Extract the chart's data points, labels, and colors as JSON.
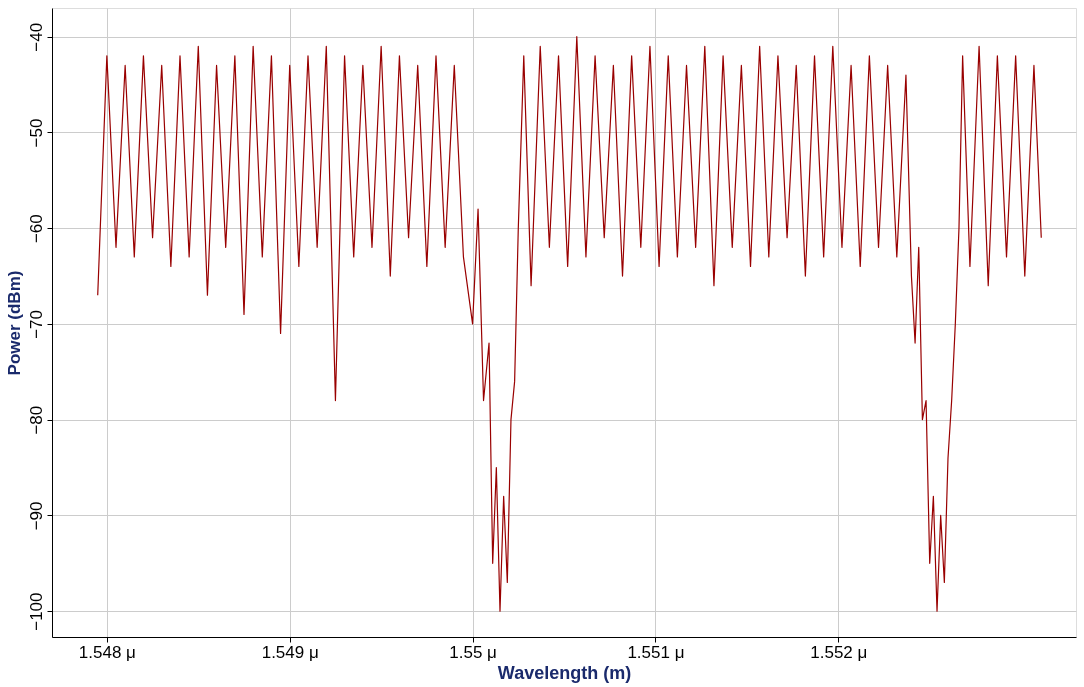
{
  "chart_data": {
    "type": "line",
    "xlabel": "Wavelength (m)",
    "ylabel": "Power (dBm)",
    "xlim": [
      1.5477,
      1.5533
    ],
    "xticks": [
      {
        "value": 1.548,
        "label": "1.548 μ"
      },
      {
        "value": 1.549,
        "label": "1.549 μ"
      },
      {
        "value": 1.55,
        "label": "1.55 μ"
      },
      {
        "value": 1.551,
        "label": "1.551 μ"
      },
      {
        "value": 1.552,
        "label": "1.552 μ"
      }
    ],
    "ylim": [
      -102.7,
      -37
    ],
    "yticks": [
      -40,
      -50,
      -60,
      -70,
      -80,
      -90,
      -100
    ],
    "grid": true,
    "line_style": "solid",
    "series": [
      {
        "color": "#990000",
        "x": [
          1.54795,
          1.548,
          1.54805,
          1.5481,
          1.54815,
          1.5482,
          1.54825,
          1.5483,
          1.54835,
          1.5484,
          1.54845,
          1.5485,
          1.54855,
          1.5486,
          1.54865,
          1.5487,
          1.54875,
          1.5488,
          1.54885,
          1.5489,
          1.54895,
          1.549,
          1.54905,
          1.5491,
          1.54915,
          1.5492,
          1.54925,
          1.5493,
          1.54935,
          1.5494,
          1.54945,
          1.5495,
          1.54955,
          1.5496,
          1.54965,
          1.5497,
          1.54975,
          1.5498,
          1.54985,
          1.5499,
          1.54995,
          1.55,
          1.55003,
          1.55006,
          1.55009,
          1.55011,
          1.55013,
          1.55015,
          1.55017,
          1.55019,
          1.55021,
          1.55023,
          1.55025,
          1.55028,
          1.55032,
          1.55037,
          1.55042,
          1.55047,
          1.55052,
          1.55057,
          1.55062,
          1.55067,
          1.55072,
          1.55077,
          1.55082,
          1.55087,
          1.55092,
          1.55097,
          1.55102,
          1.55107,
          1.55112,
          1.55117,
          1.55122,
          1.55127,
          1.55132,
          1.55137,
          1.55142,
          1.55147,
          1.55152,
          1.55157,
          1.55162,
          1.55167,
          1.55172,
          1.55177,
          1.55182,
          1.55187,
          1.55192,
          1.55197,
          1.55202,
          1.55207,
          1.55212,
          1.55217,
          1.55222,
          1.55227,
          1.55232,
          1.55237,
          1.5524,
          1.55242,
          1.55244,
          1.55246,
          1.55248,
          1.5525,
          1.55252,
          1.55254,
          1.55256,
          1.55258,
          1.5526,
          1.55262,
          1.55264,
          1.55266,
          1.55268,
          1.55272,
          1.55277,
          1.55282,
          1.55287,
          1.55292,
          1.55297,
          1.55302,
          1.55307,
          1.55311
        ],
        "values": [
          -67,
          -42,
          -62,
          -43,
          -63,
          -42,
          -61,
          -43,
          -64,
          -42,
          -63,
          -41,
          -67,
          -43,
          -62,
          -42,
          -69,
          -41,
          -63,
          -42,
          -71,
          -43,
          -64,
          -42,
          -62,
          -41,
          -78,
          -42,
          -63,
          -43,
          -62,
          -41,
          -65,
          -42,
          -61,
          -43,
          -64,
          -42,
          -62,
          -43,
          -63,
          -70,
          -58,
          -78,
          -72,
          -95,
          -85,
          -100,
          -88,
          -97,
          -80,
          -76,
          -60,
          -42,
          -66,
          -41,
          -62,
          -42,
          -64,
          -40,
          -63,
          -42,
          -61,
          -43,
          -65,
          -42,
          -62,
          -41,
          -64,
          -42,
          -63,
          -43,
          -62,
          -41,
          -66,
          -42,
          -62,
          -43,
          -64,
          -41,
          -63,
          -42,
          -61,
          -43,
          -65,
          -42,
          -63,
          -41,
          -62,
          -43,
          -64,
          -42,
          -62,
          -43,
          -63,
          -44,
          -65,
          -72,
          -62,
          -80,
          -78,
          -95,
          -88,
          -100,
          -90,
          -97,
          -84,
          -78,
          -70,
          -60,
          -42,
          -64,
          -41,
          -66,
          -42,
          -63,
          -42,
          -65,
          -43,
          -61
        ]
      }
    ]
  }
}
